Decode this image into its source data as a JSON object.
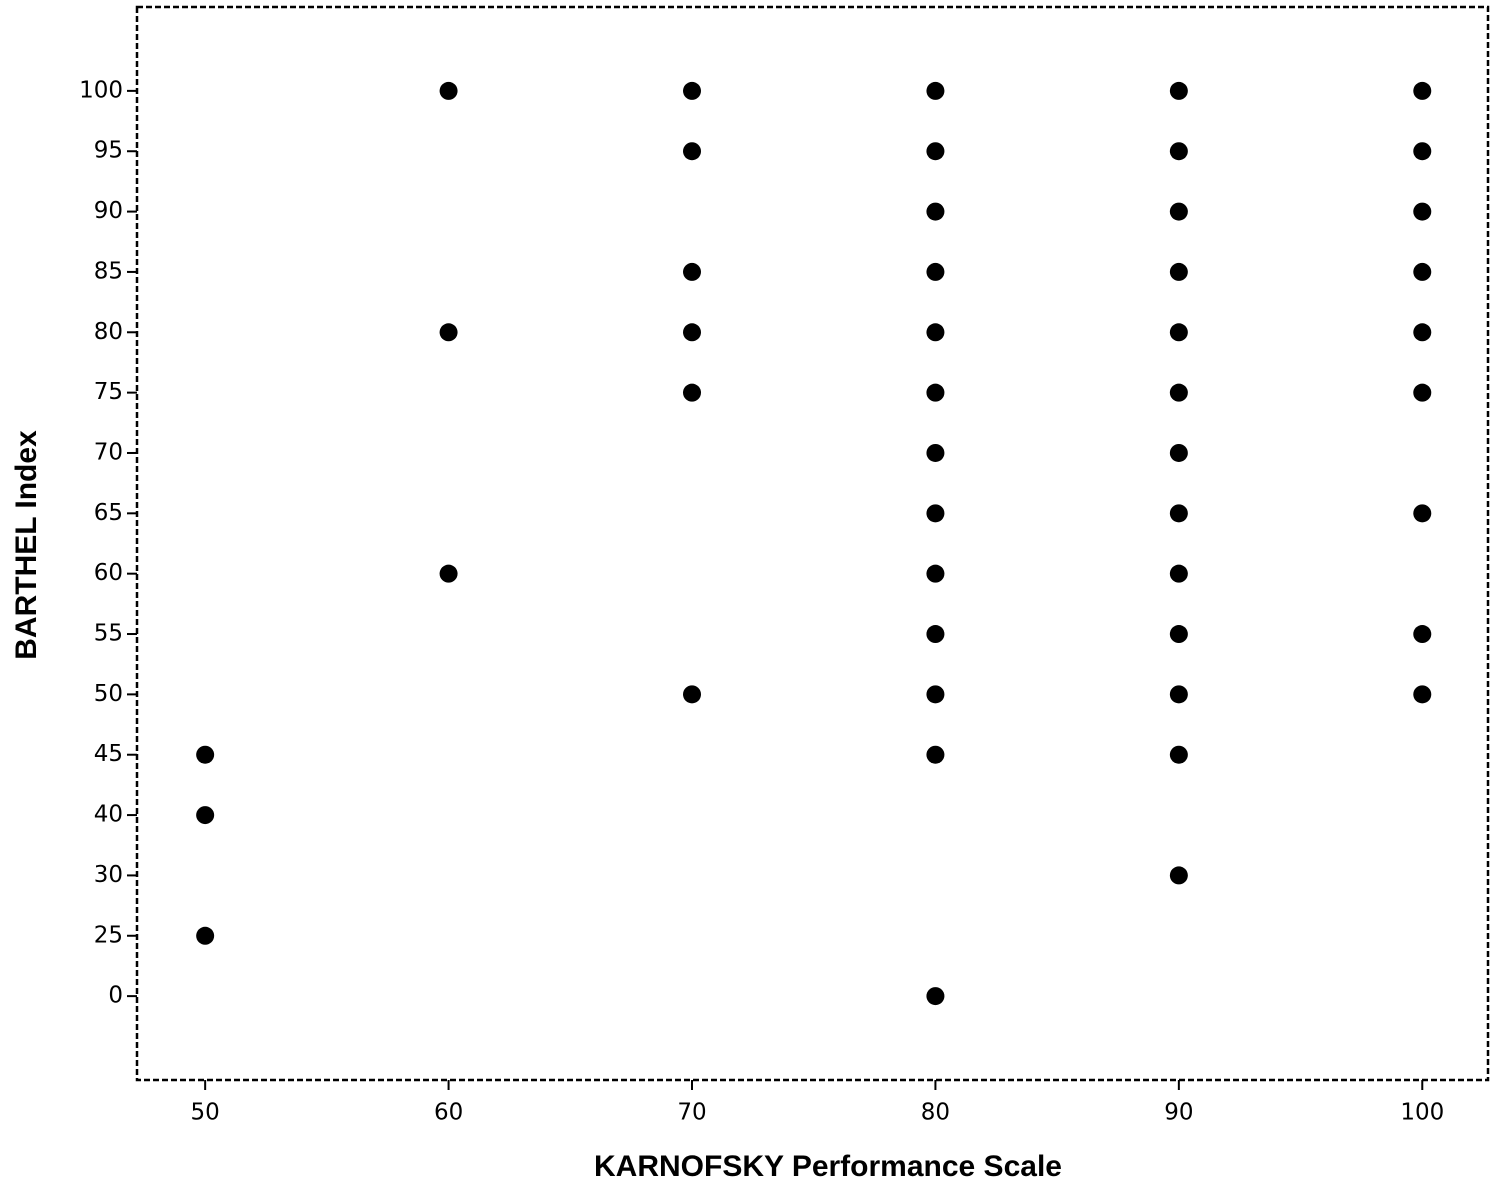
{
  "chart_data": {
    "type": "scatter",
    "x_label": "KARNOFSKY Performance Scale",
    "y_label": "BARTHEL Index",
    "xlim": [
      47.2,
      102.7
    ],
    "xticks": [
      50,
      60,
      70,
      80,
      90,
      100
    ],
    "y_scale": "ordinal",
    "yticks": [
      0,
      25,
      30,
      40,
      45,
      50,
      55,
      60,
      65,
      70,
      75,
      80,
      85,
      90,
      95,
      100
    ],
    "series": [
      {
        "color": "#000000",
        "x": [
          50,
          50,
          50,
          60,
          60,
          60,
          70,
          70,
          70,
          70,
          70,
          70,
          80,
          80,
          80,
          80,
          80,
          80,
          80,
          80,
          80,
          80,
          80,
          80,
          80,
          90,
          90,
          90,
          90,
          90,
          90,
          90,
          90,
          90,
          90,
          90,
          90,
          90,
          100,
          100,
          100,
          100,
          100,
          100,
          100,
          100,
          100
        ],
        "values": [
          45,
          40,
          25,
          100,
          80,
          60,
          100,
          95,
          85,
          80,
          75,
          50,
          100,
          95,
          90,
          85,
          80,
          75,
          70,
          65,
          60,
          55,
          50,
          45,
          0,
          100,
          95,
          90,
          85,
          80,
          75,
          70,
          65,
          60,
          55,
          50,
          45,
          30,
          100,
          95,
          90,
          85,
          80,
          75,
          65,
          55,
          50
        ]
      }
    ]
  }
}
